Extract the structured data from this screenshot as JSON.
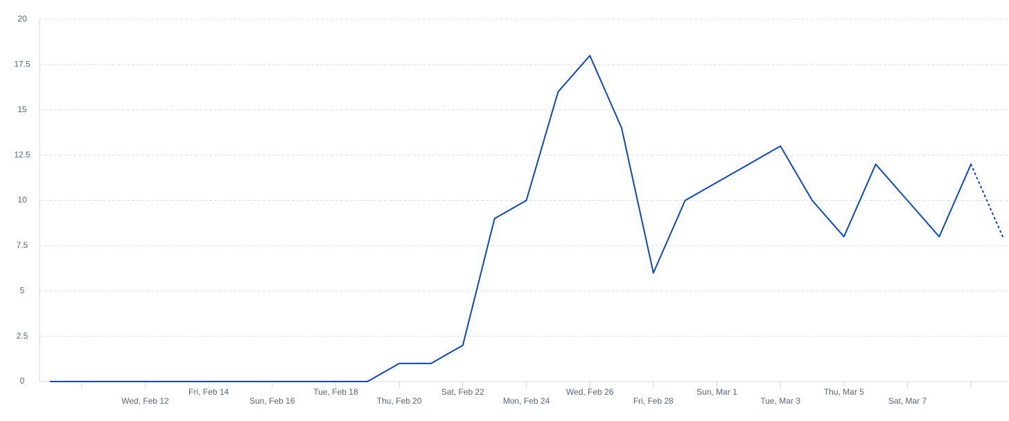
{
  "chart_data": {
    "type": "line",
    "categories": [
      null,
      null,
      null,
      "Wed, Feb 12",
      null,
      "Fri, Feb 14",
      null,
      "Sun, Feb 16",
      null,
      "Tue, Feb 18",
      null,
      "Thu, Feb 20",
      null,
      "Sat, Feb 22",
      null,
      "Mon, Feb 24",
      null,
      "Wed, Feb 26",
      null,
      "Fri, Feb 28",
      null,
      "Sun, Mar 1",
      null,
      "Tue, Mar 3",
      null,
      "Thu, Mar 5",
      null,
      "Sat, Mar 7",
      null,
      null,
      null
    ],
    "values": [
      0,
      0,
      0,
      0,
      0,
      0,
      0,
      0,
      0,
      0,
      0,
      1,
      1,
      2,
      9,
      10,
      16,
      18,
      14,
      6,
      10,
      11,
      12,
      13,
      10,
      8,
      12,
      10,
      8,
      12,
      8
    ],
    "color": "#0a47bd",
    "last_segment_dotted": true,
    "ylim": [
      0,
      20
    ],
    "yticks": [
      0,
      2.5,
      5,
      7.5,
      10,
      12.5,
      15,
      17.5,
      20
    ],
    "grid": true
  }
}
